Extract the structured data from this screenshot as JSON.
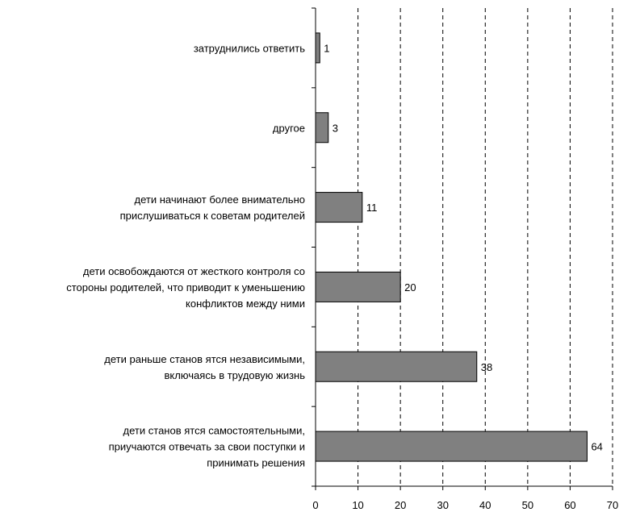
{
  "chart_data": {
    "type": "bar",
    "orientation": "horizontal",
    "title": "",
    "xlabel": "",
    "ylabel": "",
    "xlim": [
      0,
      70
    ],
    "ticks": [
      "0",
      "10",
      "20",
      "30",
      "40",
      "50",
      "60",
      "70"
    ],
    "grid": "vertical dashed",
    "bar_color": "#808080",
    "categories": [
      [
        "затруднились ответить"
      ],
      [
        "другое"
      ],
      [
        "дети начинают более внимательно",
        "прислушиваться к советам родителей"
      ],
      [
        "дети освобождаются от жесткого контроля со",
        "стороны родителей, что приводит к уменьшению",
        "конфликтов между ними"
      ],
      [
        "дети раньше станов ятся независимыми,",
        "включаясь в трудовую жизнь"
      ],
      [
        "дети станов ятся самостоятельными,",
        "приучаются отвечать за свои поступки и",
        "принимать решения"
      ]
    ],
    "values": [
      1,
      3,
      11,
      20,
      38,
      64
    ],
    "value_labels": [
      "1",
      "3",
      "11",
      "20",
      "38",
      "64"
    ]
  }
}
